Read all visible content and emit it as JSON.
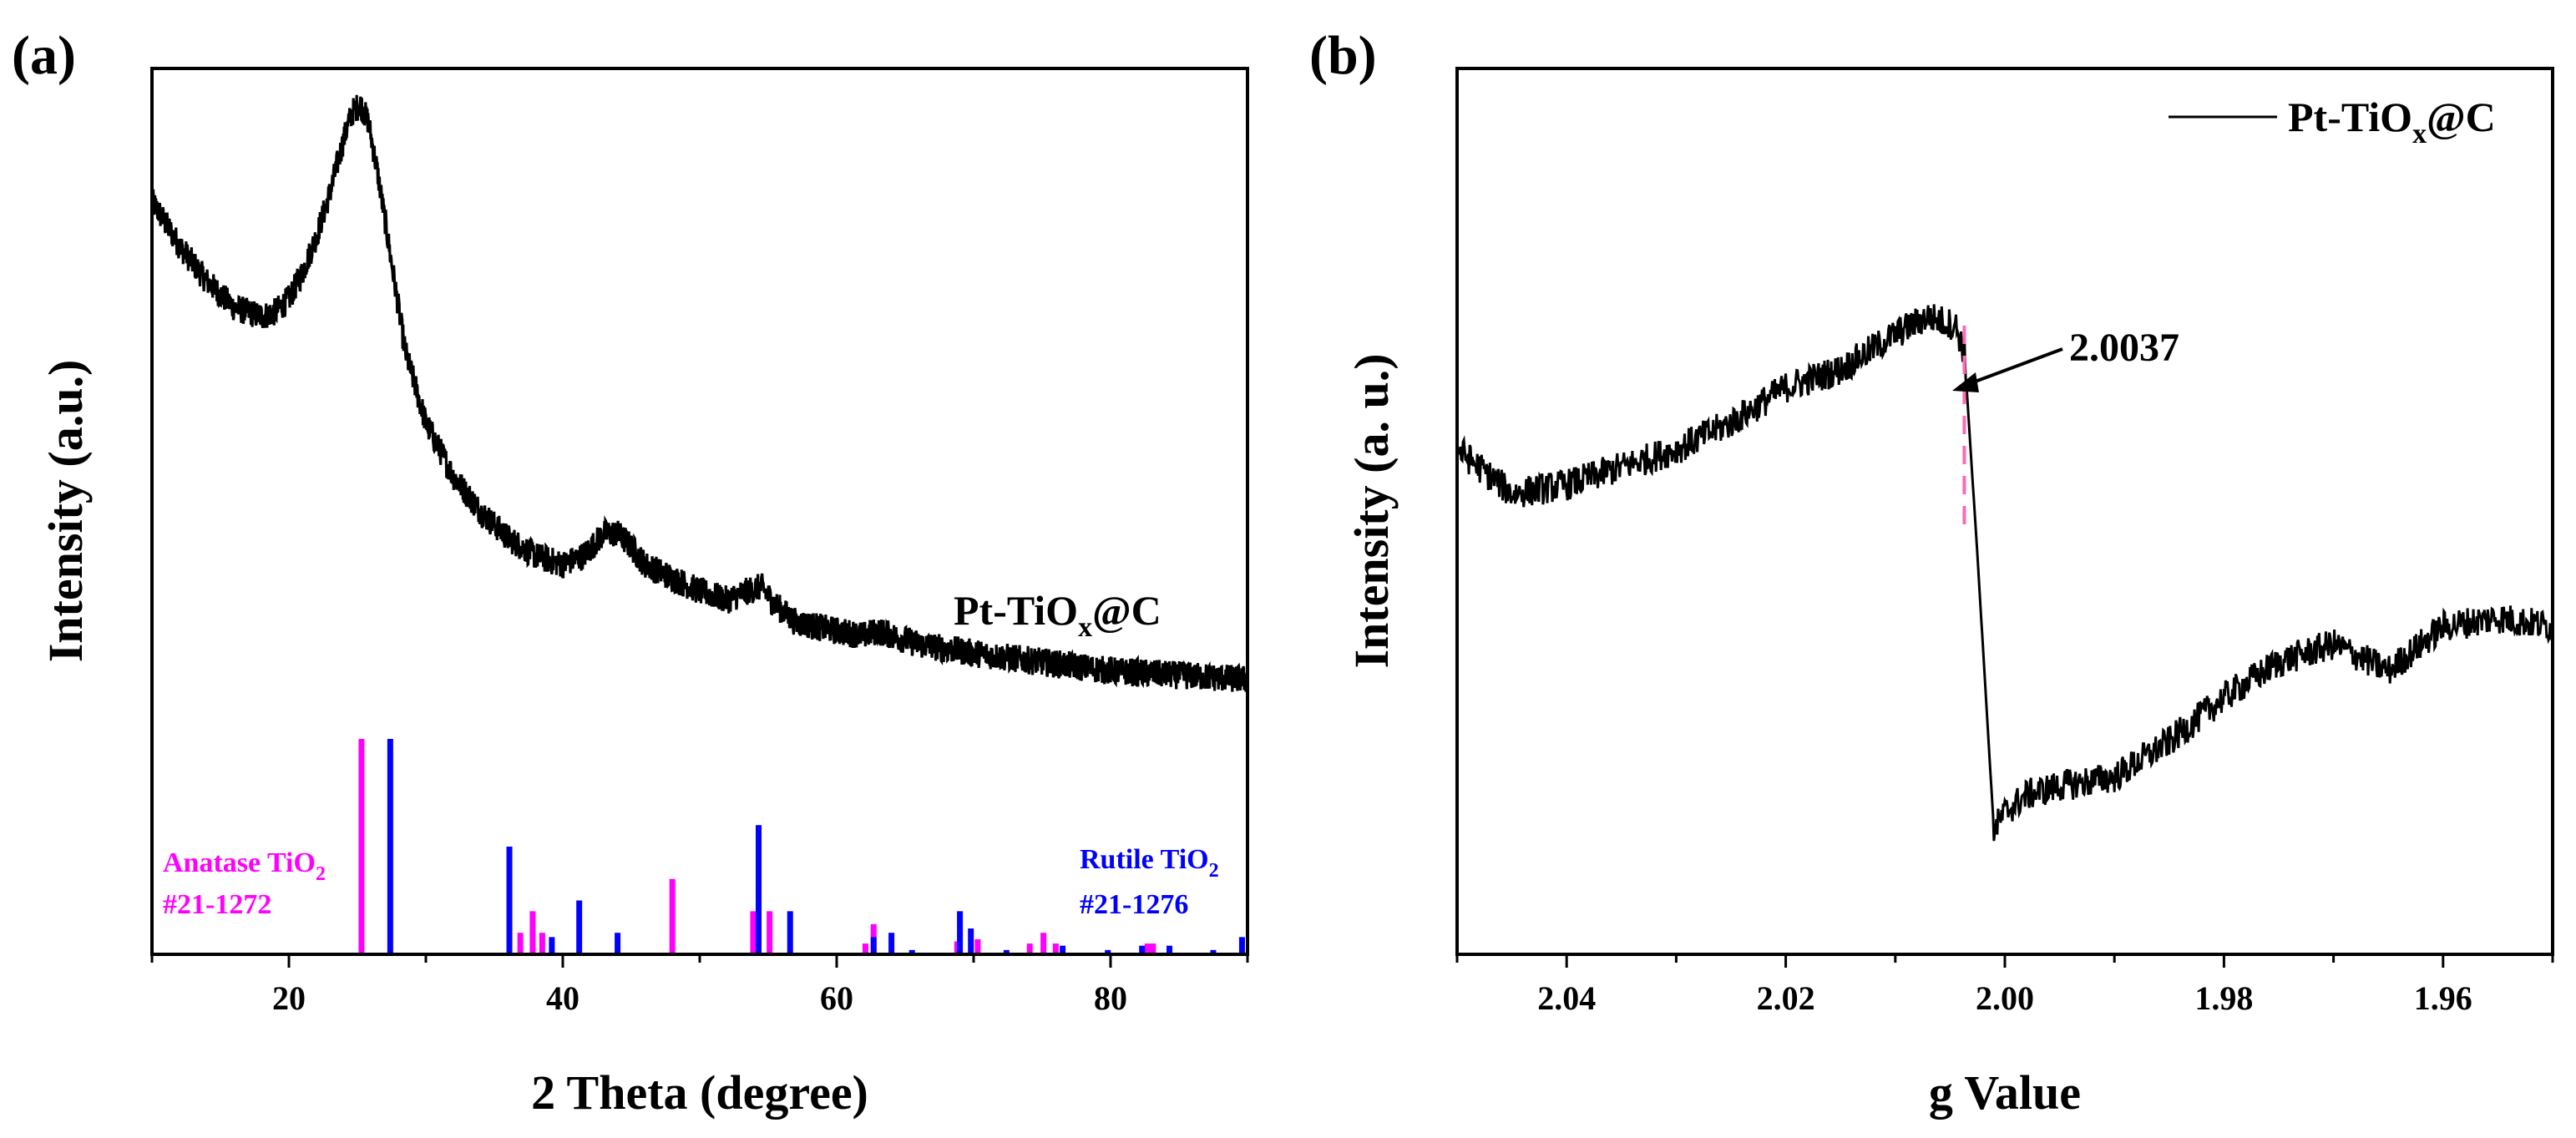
{
  "chart_data": [
    {
      "type": "line",
      "panel_label": "(a)",
      "title": "",
      "xlabel": "2 Theta (degree)",
      "ylabel": "Intensity (a.u.)",
      "xlim": [
        10,
        90
      ],
      "ylim": [
        0,
        100
      ],
      "x_ticks": [
        20,
        40,
        60,
        80
      ],
      "y_ticks_shown": false,
      "grid": false,
      "series": [
        {
          "name": "Pt-TiOₓ@C",
          "label_main": "Pt-TiO",
          "label_sub": "x",
          "label_tail": "@C",
          "color": "#000000",
          "noisy": true,
          "x": [
            10,
            12,
            14,
            16,
            18,
            19,
            20,
            21,
            22,
            23,
            24,
            24.6,
            25.2,
            25.8,
            26.5,
            27.5,
            28.5,
            30,
            32,
            34,
            36,
            38,
            40,
            41.5,
            43,
            44,
            45,
            46,
            48,
            50,
            52,
            53.5,
            54.5,
            55.5,
            57,
            60,
            62,
            63,
            64,
            66,
            70,
            75,
            80,
            85,
            90
          ],
          "y": [
            85,
            80,
            76,
            73,
            72,
            72.5,
            74,
            77,
            81,
            86,
            92,
            95,
            96,
            94,
            88,
            78,
            68,
            60,
            54,
            50,
            47,
            45,
            44,
            45,
            47.5,
            47.5,
            46,
            44,
            42.5,
            41,
            40,
            41,
            41.5,
            39.5,
            37.5,
            36.5,
            36,
            36.5,
            36,
            35,
            34,
            33,
            32,
            31.5,
            31
          ]
        }
      ],
      "reference_patterns": [
        {
          "name": "Anatase TiO2",
          "label_line1": "Anatase TiO",
          "label_sub": "2",
          "label_line2": "#21-1272",
          "color": "#ff00ff",
          "x": [
            25.3,
            36.9,
            37.8,
            38.5,
            48.0,
            53.9,
            55.1,
            62.1,
            62.7,
            68.8,
            70.3,
            74.1,
            75.1,
            76.0,
            82.7,
            83.1
          ],
          "y": [
            100,
            10,
            20,
            10,
            35,
            20,
            20,
            5,
            14,
            6,
            7,
            5,
            10,
            5,
            5,
            5
          ]
        },
        {
          "name": "Rutile TiO2",
          "label_line1": "Rutile TiO",
          "label_sub": "2",
          "label_line2": "#21-1276",
          "color": "#0000ff",
          "x": [
            27.4,
            36.1,
            39.2,
            41.2,
            44.0,
            54.3,
            56.6,
            62.7,
            64.0,
            65.5,
            69.0,
            69.8,
            72.4,
            76.5,
            79.8,
            82.3,
            84.3,
            87.5,
            89.6
          ],
          "y": [
            100,
            50,
            8,
            25,
            10,
            60,
            20,
            8,
            10,
            2,
            20,
            12,
            2,
            4,
            2,
            4,
            4,
            2,
            8
          ]
        }
      ]
    },
    {
      "type": "line",
      "panel_label": "(b)",
      "title": "",
      "xlabel": "g Value",
      "ylabel": "Intensity (a. u.)",
      "xlim": [
        2.05,
        1.95
      ],
      "x_reversed": true,
      "ylim": [
        0,
        100
      ],
      "x_ticks": [
        2.04,
        2.02,
        2.0,
        1.98,
        1.96
      ],
      "x_tick_labels": [
        "2.04",
        "2.02",
        "2.00",
        "1.98",
        "1.96"
      ],
      "y_ticks_shown": false,
      "grid": false,
      "legend_position": "top-right",
      "series": [
        {
          "name": "Pt-TiOₓ@C",
          "label_main": "Pt-TiO",
          "label_sub": "x",
          "label_tail": "@C",
          "color": "#000000",
          "noisy": true,
          "x": [
            2.05,
            2.045,
            2.04,
            2.035,
            2.03,
            2.025,
            2.02,
            2.015,
            2.01,
            2.007,
            2.0045,
            2.0037,
            2.0025,
            2.001,
            2.0,
            1.998,
            1.995,
            1.99,
            1.985,
            1.98,
            1.975,
            1.97,
            1.965,
            1.96,
            1.955,
            1.95
          ],
          "y": [
            57,
            52,
            53,
            55,
            57,
            60,
            64,
            66,
            70,
            72,
            71,
            68,
            45,
            14,
            16,
            18,
            19,
            20,
            24,
            29,
            33,
            35,
            32,
            37,
            38,
            37
          ]
        }
      ],
      "annotations": [
        {
          "text": "2.0037",
          "x": 2.0037,
          "color": "#000000",
          "marker_color": "#ff69b4"
        }
      ]
    }
  ]
}
